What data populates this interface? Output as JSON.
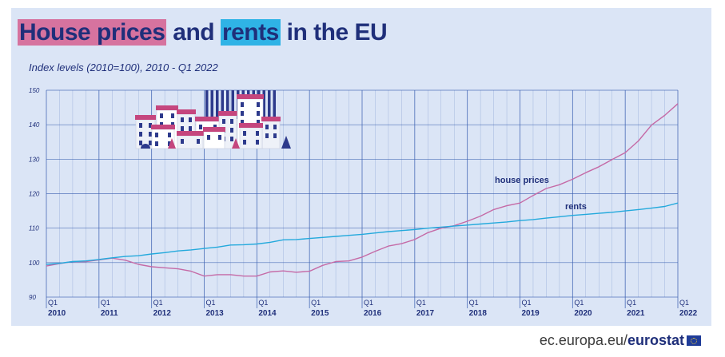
{
  "title": {
    "part1": "House prices",
    "part2": " and ",
    "part3": "rents",
    "part4": " in the EU"
  },
  "subtitle": "Index levels (2010=100), 2010 - Q1 2022",
  "footer": {
    "site": "ec.europa.eu/",
    "brand": "eurostat"
  },
  "colors": {
    "house_prices": "#c56aa6",
    "rents": "#23a9dc",
    "grid": "#3a5fb0",
    "text": "#1f2f7a"
  },
  "illustration": "houses-illustration",
  "chart_data": {
    "type": "line",
    "title": "House prices and rents in the EU",
    "subtitle": "Index levels (2010=100), 2010 - Q1 2022",
    "ylim": [
      90,
      150
    ],
    "yticks": [
      90,
      100,
      110,
      120,
      130,
      140,
      150
    ],
    "grid": true,
    "x": [
      "2010Q1",
      "2010Q2",
      "2010Q3",
      "2010Q4",
      "2011Q1",
      "2011Q2",
      "2011Q3",
      "2011Q4",
      "2012Q1",
      "2012Q2",
      "2012Q3",
      "2012Q4",
      "2013Q1",
      "2013Q2",
      "2013Q3",
      "2013Q4",
      "2014Q1",
      "2014Q2",
      "2014Q3",
      "2014Q4",
      "2015Q1",
      "2015Q2",
      "2015Q3",
      "2015Q4",
      "2016Q1",
      "2016Q2",
      "2016Q3",
      "2016Q4",
      "2017Q1",
      "2017Q2",
      "2017Q3",
      "2017Q4",
      "2018Q1",
      "2018Q2",
      "2018Q3",
      "2018Q4",
      "2019Q1",
      "2019Q2",
      "2019Q3",
      "2019Q4",
      "2020Q1",
      "2020Q2",
      "2020Q3",
      "2020Q4",
      "2021Q1",
      "2021Q2",
      "2021Q3",
      "2021Q4",
      "2022Q1"
    ],
    "tick_quarter_label": "Q1",
    "tick_years": [
      "2010",
      "2011",
      "2012",
      "2013",
      "2014",
      "2015",
      "2016",
      "2017",
      "2018",
      "2019",
      "2020",
      "2021",
      "2022"
    ],
    "series": [
      {
        "name": "house prices",
        "values": [
          99.0,
          99.7,
          100.3,
          100.3,
          100.8,
          101.3,
          100.7,
          99.5,
          98.8,
          98.5,
          98.2,
          97.5,
          96.1,
          96.5,
          96.5,
          96.1,
          96.1,
          97.3,
          97.6,
          97.2,
          97.5,
          99.2,
          100.3,
          100.5,
          101.6,
          103.3,
          104.8,
          105.5,
          106.7,
          108.7,
          110.0,
          110.7,
          112.0,
          113.5,
          115.4,
          116.5,
          117.3,
          119.5,
          121.5,
          122.6,
          124.2,
          126.1,
          127.8,
          129.9,
          131.9,
          135.3,
          139.9,
          142.7,
          146.1
        ]
      },
      {
        "name": "rents",
        "values": [
          99.5,
          99.8,
          100.3,
          100.5,
          100.9,
          101.4,
          101.8,
          102.0,
          102.5,
          102.9,
          103.4,
          103.7,
          104.1,
          104.5,
          105.1,
          105.2,
          105.4,
          105.9,
          106.6,
          106.7,
          107.0,
          107.3,
          107.6,
          107.9,
          108.2,
          108.6,
          109.0,
          109.3,
          109.6,
          110.0,
          110.3,
          110.6,
          110.9,
          111.2,
          111.5,
          111.8,
          112.2,
          112.5,
          112.9,
          113.3,
          113.7,
          114.0,
          114.3,
          114.6,
          115.0,
          115.4,
          115.8,
          116.3,
          117.3
        ]
      }
    ]
  }
}
